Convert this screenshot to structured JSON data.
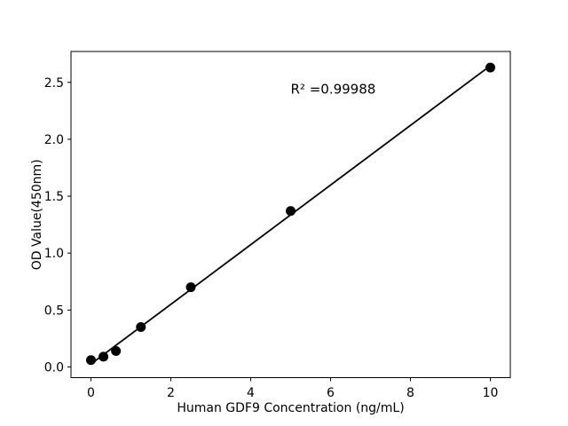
{
  "figure": {
    "background": "#ffffff"
  },
  "chart_data": {
    "type": "scatter",
    "title": "",
    "xlabel": "Human GDF9 Concentration (ng/mL)",
    "ylabel": "OD Value(450nm)",
    "x": [
      0,
      0.3125,
      0.625,
      1.25,
      2.5,
      5,
      10
    ],
    "y": [
      0.06,
      0.09,
      0.14,
      0.35,
      0.7,
      1.37,
      2.63
    ],
    "xlim": [
      -0.5,
      10.5
    ],
    "ylim": [
      -0.094,
      2.771
    ],
    "xticks": [
      0,
      2,
      4,
      6,
      8,
      10
    ],
    "xtick_labels": [
      "0",
      "2",
      "4",
      "6",
      "8",
      "10"
    ],
    "yticks": [
      0.0,
      0.5,
      1.0,
      1.5,
      2.0,
      2.5
    ],
    "ytick_labels": [
      "0.0",
      "0.5",
      "1.0",
      "1.5",
      "2.0",
      "2.5"
    ],
    "trendline": {
      "slope": 0.262,
      "intercept": 0.026,
      "x_start": 0,
      "x_end": 10
    },
    "annotation": {
      "text": "R² =0.99988",
      "x": 5.0,
      "y": 2.4
    },
    "marker_color": "#000000",
    "line_color": "#000000",
    "axis_color": "#000000",
    "grid": false,
    "legend": null
  }
}
